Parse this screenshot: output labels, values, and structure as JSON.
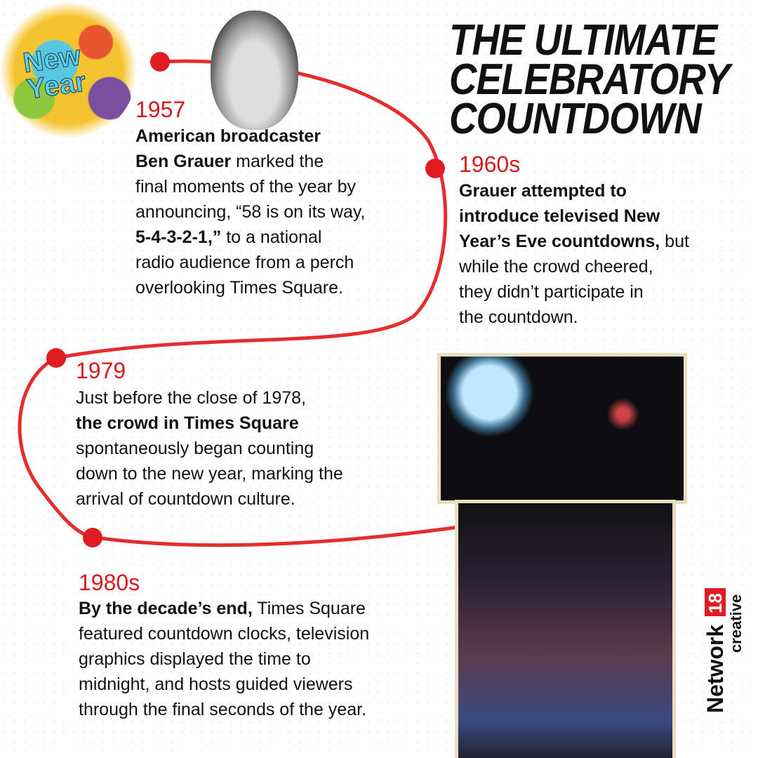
{
  "title": [
    "THE ULTIMATE",
    "CELEBRATORY",
    "COUNTDOWN"
  ],
  "logo_text": "New Year",
  "accent": "#d71920",
  "entries": [
    {
      "year": "1957",
      "lines": [
        [
          "",
          "American broadcaster",
          "",
          ""
        ],
        [
          "Ben Grauer",
          " marked the"
        ],
        [
          "final moments of the year by"
        ],
        [
          "announcing, “58 is on its way,"
        ],
        [
          "5-4-3-2-1,”",
          " to a national"
        ],
        [
          "radio audience from a perch"
        ],
        [
          "overlooking Times Square."
        ]
      ]
    },
    {
      "year": "1960s"
    },
    {
      "year": "1979"
    },
    {
      "year": "1980s"
    }
  ],
  "t1957": {
    "b1": "American broadcaster",
    "b2": "Ben Grauer",
    "r2": " marked the",
    "l3": "final moments of the year by",
    "l4": "announcing, “58 is on its way,",
    "b5": "5-4-3-2-1,”",
    "r5": " to a national",
    "l6": "radio audience from a perch",
    "l7": "overlooking Times Square."
  },
  "t1960": {
    "b1": "Grauer attempted to",
    "b2": "introduce televised New",
    "b3": "Year’s Eve countdowns,",
    "r3": " but",
    "l4": "while the crowd cheered,",
    "l5": "they didn’t participate in",
    "l6": "the countdown."
  },
  "t1979": {
    "l1": "Just before the close of 1978,",
    "b2": "the crowd in Times Square",
    "l3": "spontaneously began counting",
    "l4": "down to the new year, marking the",
    "l5": "arrival of countdown culture."
  },
  "t1980": {
    "b1": "By the decade’s end,",
    "r1": " Times Square",
    "l2": "featured countdown clocks, television",
    "l3": "graphics displayed the time to",
    "l4": "midnight, and hosts guided viewers",
    "l5": "through the final seconds of the year."
  },
  "brand": {
    "name": "Network",
    "num": "18",
    "sub": "creative"
  }
}
